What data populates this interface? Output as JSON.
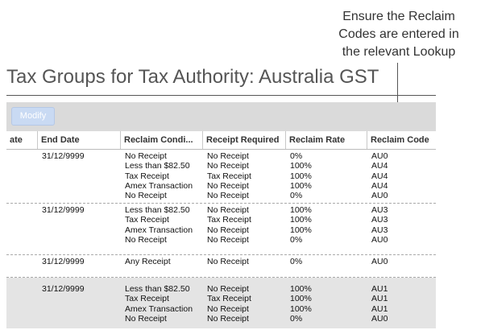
{
  "callout": {
    "line1": "Ensure the Reclaim",
    "line2": "Codes are entered in",
    "line3": "the relevant Lookup"
  },
  "page": {
    "title": "Tax Groups for Tax Authority: Australia GST"
  },
  "toolbar": {
    "modify_label": "Modify"
  },
  "table": {
    "headers": {
      "start_date": "ate",
      "end_date": "End Date",
      "reclaim_condition": "Reclaim Condi...",
      "receipt_required": "Receipt Required",
      "reclaim_rate": "Reclaim Rate",
      "reclaim_code": "Reclaim Code"
    },
    "rows": [
      {
        "end_date": "31/12/9999",
        "conditions": [
          "No Receipt",
          "Less than $82.50",
          "Tax Receipt",
          "Amex Transaction",
          "No Receipt"
        ],
        "receipts": [
          "No Receipt",
          "No Receipt",
          "Tax Receipt",
          "No Receipt",
          "No Receipt"
        ],
        "rates": [
          "0%",
          "100%",
          "100%",
          "100%",
          "0%"
        ],
        "codes": [
          "AU0",
          "AU4",
          "AU4",
          "AU4",
          "AU0"
        ]
      },
      {
        "end_date": "31/12/9999",
        "conditions": [
          "Less than $82.50",
          "Tax Receipt",
          "Amex Transaction",
          "No Receipt"
        ],
        "receipts": [
          "No Receipt",
          "Tax Receipt",
          "No Receipt",
          "No Receipt"
        ],
        "rates": [
          "100%",
          "100%",
          "100%",
          "0%"
        ],
        "codes": [
          "AU3",
          "AU3",
          "AU3",
          "AU0"
        ]
      },
      {
        "end_date": "31/12/9999",
        "conditions": [
          "Any Receipt"
        ],
        "receipts": [
          "No Receipt"
        ],
        "rates": [
          "0%"
        ],
        "codes": [
          "AU0"
        ]
      },
      {
        "end_date": "31/12/9999",
        "conditions": [
          "Less than $82.50",
          "Tax Receipt",
          "Amex Transaction",
          "No Receipt"
        ],
        "receipts": [
          "No Receipt",
          "Tax Receipt",
          "No Receipt",
          "No Receipt"
        ],
        "rates": [
          "100%",
          "100%",
          "100%",
          "0%"
        ],
        "codes": [
          "AU1",
          "AU1",
          "AU1",
          "AU0"
        ]
      }
    ]
  }
}
